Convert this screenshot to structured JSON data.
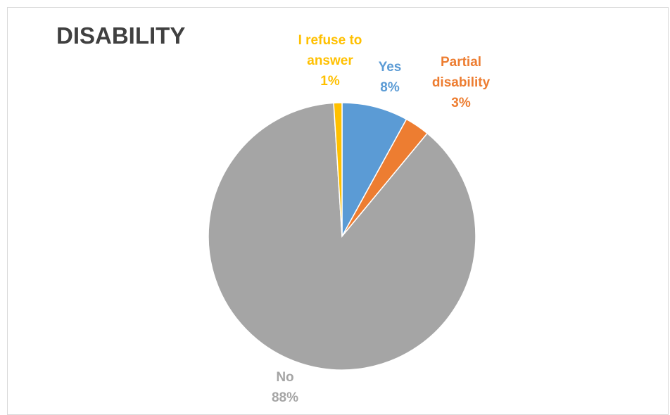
{
  "chart_data": {
    "type": "pie",
    "title": "DISABILITY",
    "slices": [
      {
        "name": "Yes",
        "value": 8,
        "percent_label": "8%",
        "color": "#5b9bd5"
      },
      {
        "name": "Partial disability",
        "value": 3,
        "percent_label": "3%",
        "color": "#ed7d31"
      },
      {
        "name": "No",
        "value": 88,
        "percent_label": "88%",
        "color": "#a5a5a5"
      },
      {
        "name": "I refuse to answer",
        "value": 1,
        "percent_label": "1%",
        "color": "#ffc000"
      }
    ],
    "legend": "none",
    "start_angle_deg": 0,
    "direction": "clockwise"
  }
}
